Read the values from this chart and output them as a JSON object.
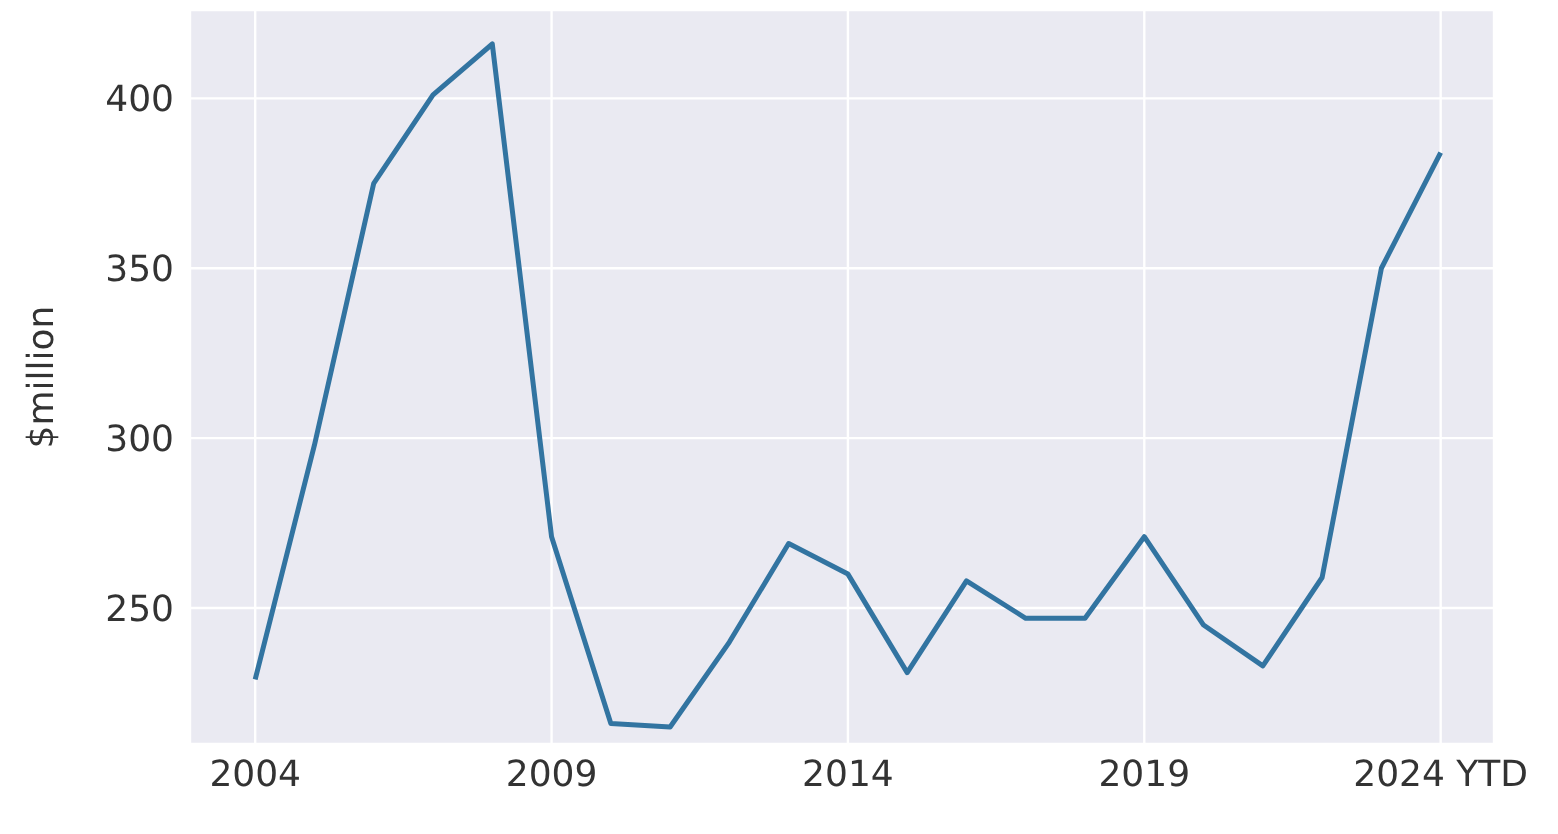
{
  "chart_data": {
    "type": "line",
    "ylabel": "$million",
    "categories": [
      "2004",
      null,
      null,
      null,
      null,
      "2009",
      null,
      null,
      null,
      null,
      "2014",
      null,
      null,
      null,
      null,
      "2019",
      null,
      null,
      null,
      null,
      "2024 YTD"
    ],
    "series": [
      {
        "color": "#3274a1",
        "values": [
          229,
          298,
          375,
          401,
          416,
          271,
          216,
          215,
          240,
          269,
          260,
          231,
          258,
          247,
          247,
          271,
          245,
          233,
          259,
          350,
          384
        ]
      }
    ],
    "ylim": [
      210,
      426
    ],
    "yticks": [
      250,
      300,
      350,
      400
    ],
    "grid": true
  }
}
